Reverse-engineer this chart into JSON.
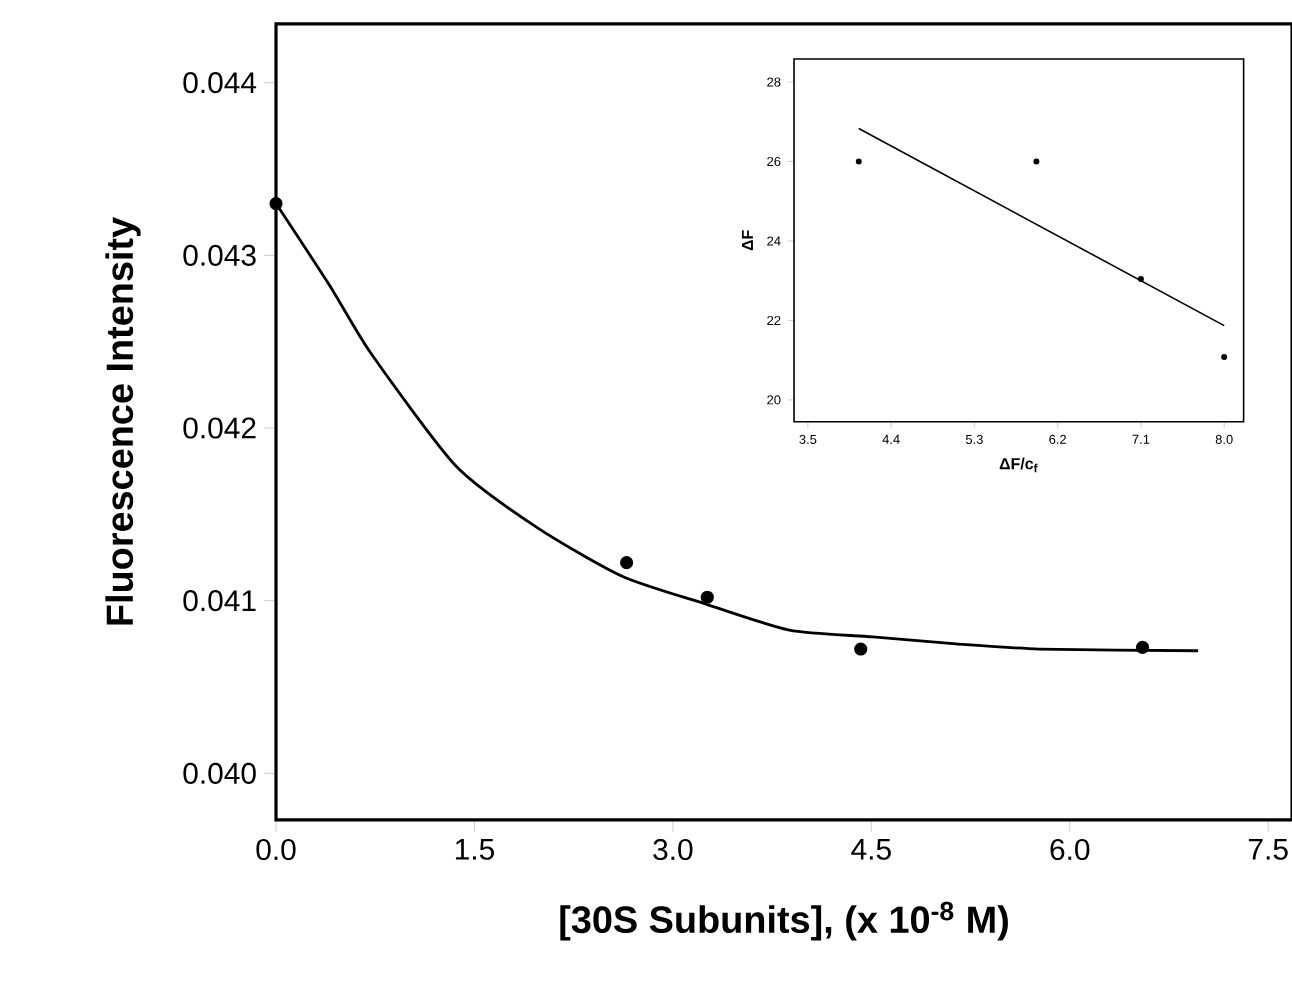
{
  "chart_data": [
    {
      "type": "scatter",
      "xlabel": "[30S Subunits], (x 10$^{-8}$ M)",
      "ylabel": "Fluorescence Intensity",
      "xlim": [
        0,
        7.68
      ],
      "ylim": [
        0.03973,
        0.04434
      ],
      "xticks": [
        {
          "value": 0,
          "label": "0.0"
        },
        1.5,
        {
          "value": 3,
          "label": "3.0"
        },
        4.5,
        {
          "value": 6,
          "label": "6.0"
        },
        7.5
      ],
      "yticks": [
        {
          "value": 0.04,
          "label": "0.040"
        },
        0.041,
        0.042,
        0.043,
        0.044
      ],
      "series": [
        {
          "marker": "circle",
          "color": "#000000",
          "x": [
            0,
            2.65,
            3.26,
            4.42,
            6.55
          ],
          "values": [
            0.0433,
            0.04122,
            0.04102,
            0.04072,
            0.04073
          ]
        },
        {
          "type": "line",
          "marker": "none",
          "line_style": "solid",
          "color": "#000000",
          "x": [
            0,
            0.41,
            0.72,
            1.36,
            1.98,
            2.62,
            3.25,
            3.88,
            4.51,
            5.14,
            5.77,
            6.97
          ],
          "values": [
            0.0433,
            0.04282,
            0.04243,
            0.04178,
            0.04142,
            0.04114,
            0.04098,
            0.04083,
            0.04079,
            0.04075,
            0.04072,
            0.04071
          ]
        }
      ]
    },
    {
      "type": "scatter",
      "xlabel": "ΔF/c$_{f}$",
      "ylabel": "ΔF",
      "xlim": [
        3.35,
        8.21
      ],
      "ylim": [
        19.45,
        28.58
      ],
      "xticks": [
        3.5,
        4.4,
        5.3,
        6.2,
        7.1,
        {
          "value": 8.0,
          "label": "8.0"
        }
      ],
      "yticks": [
        20,
        22,
        24,
        26,
        28
      ],
      "series": [
        {
          "marker": "circle",
          "color": "#000000",
          "x": [
            4.05,
            5.97,
            7.1,
            8.0
          ],
          "values": [
            26.0,
            26.0,
            23.04,
            21.08
          ]
        },
        {
          "type": "line",
          "marker": "none",
          "line_style": "solid",
          "color": "#000000",
          "x": [
            4.05,
            8.0
          ],
          "values": [
            26.83,
            21.87
          ]
        }
      ]
    }
  ]
}
